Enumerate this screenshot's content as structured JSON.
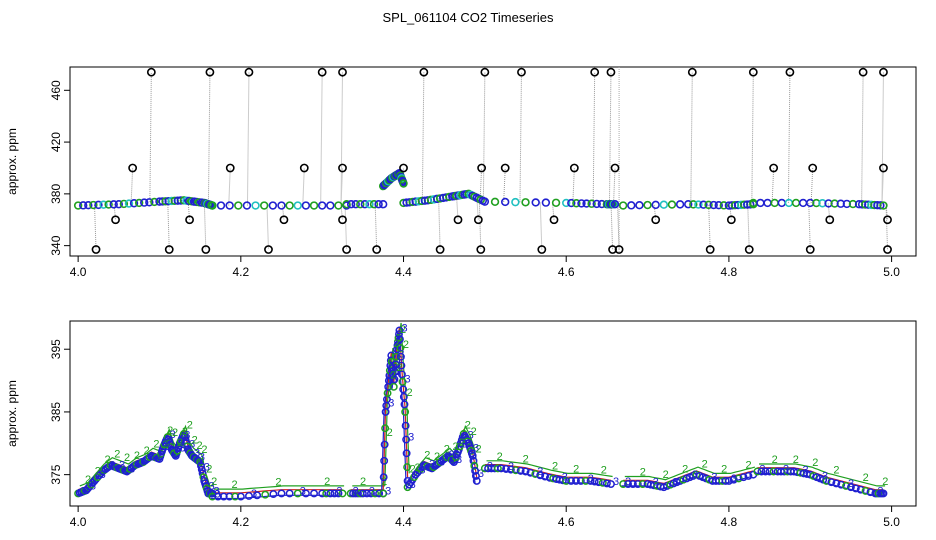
{
  "title": "SPL_061104  CO2 Timeseries",
  "chart_data": [
    {
      "type": "scatter",
      "title": "",
      "xlabel": "",
      "ylabel": "approx. ppm",
      "xlim": [
        3.99,
        5.03
      ],
      "ylim": [
        332,
        478
      ],
      "xticks": [
        4.0,
        4.2,
        4.4,
        4.6,
        4.8,
        5.0
      ],
      "xtick_labels": [
        "4.0",
        "4.2",
        "4.4",
        "4.6",
        "4.8",
        "5.0"
      ],
      "yticks": [
        340,
        380,
        420,
        460
      ],
      "ytick_labels": [
        "340",
        "380",
        "420",
        "460"
      ],
      "baseline_segments": [
        {
          "x": [
            4.0,
            4.05,
            4.1,
            4.13,
            4.155,
            4.165
          ],
          "y": [
            371,
            372,
            374,
            375,
            373,
            371
          ]
        },
        {
          "x": [
            4.165,
            4.25,
            4.33
          ],
          "y": [
            371,
            371,
            371
          ]
        },
        {
          "x": [
            4.33,
            4.375
          ],
          "y": [
            372,
            372
          ]
        },
        {
          "x": [
            4.375,
            4.385,
            4.395,
            4.4
          ],
          "y": [
            386,
            392,
            396,
            388
          ]
        },
        {
          "x": [
            4.4,
            4.43,
            4.46,
            4.48,
            4.5,
            4.6,
            4.65,
            4.66
          ],
          "y": [
            373,
            375,
            378,
            380,
            374,
            373,
            372,
            372
          ]
        },
        {
          "x": [
            4.67,
            4.75,
            4.8,
            4.83
          ],
          "y": [
            371,
            372,
            371,
            372
          ]
        },
        {
          "x": [
            4.83,
            4.9,
            4.96,
            4.99
          ],
          "y": [
            373,
            373,
            372,
            371
          ]
        }
      ],
      "outliers_high": [
        4.09,
        4.162,
        4.21,
        4.3,
        4.325,
        4.425,
        4.5,
        4.545,
        4.635,
        4.655,
        4.755,
        4.83,
        4.875,
        4.965,
        4.99
      ],
      "outliers_high_value": 474,
      "outliers_mid": [
        4.067,
        4.187,
        4.278,
        4.325,
        4.4,
        4.496,
        4.525,
        4.61,
        4.66,
        4.855,
        4.903,
        4.99
      ],
      "outliers_mid_value": 400,
      "outliers_low": [
        4.022,
        4.112,
        4.157,
        4.234,
        4.33,
        4.367,
        4.445,
        4.495,
        4.57,
        4.657,
        4.665,
        4.777,
        4.825,
        4.9,
        4.995
      ],
      "outliers_low_value": 337,
      "outliers_lowmid": [
        4.046,
        4.137,
        4.253,
        4.325,
        4.467,
        4.492,
        4.585,
        4.71,
        4.803,
        4.924,
        4.995
      ],
      "outliers_lowmid_value": 360
    },
    {
      "type": "line",
      "title": "",
      "xlabel": "",
      "ylabel": "approx. ppm",
      "xlim": [
        3.99,
        5.03
      ],
      "ylim": [
        370,
        399.5
      ],
      "xticks": [
        4.0,
        4.2,
        4.4,
        4.6,
        4.8,
        5.0
      ],
      "xtick_labels": [
        "4.0",
        "4.2",
        "4.4",
        "4.6",
        "4.8",
        "5.0"
      ],
      "yticks": [
        375,
        385,
        395
      ],
      "ytick_labels": [
        "375",
        "385",
        "395"
      ],
      "series_labels": [
        "1",
        "2",
        "3"
      ],
      "series_colors": [
        "#d02020",
        "#20a020",
        "#2020d0"
      ],
      "segments": [
        {
          "x": [
            4.0,
            4.01,
            4.02,
            4.03,
            4.04,
            4.05,
            4.06,
            4.07,
            4.08,
            4.09,
            4.1,
            4.105,
            4.11,
            4.115,
            4.12,
            4.125,
            4.13,
            4.135,
            4.14,
            4.145,
            4.15,
            4.155,
            4.16,
            4.165
          ],
          "y": [
            372,
            372.5,
            374,
            375.5,
            376.5,
            376,
            375.5,
            376.5,
            377,
            378,
            377.5,
            379.5,
            381,
            379,
            378,
            380,
            381.5,
            379,
            378,
            377.5,
            377,
            374,
            372,
            372
          ]
        },
        {
          "x": [
            4.165,
            4.2,
            4.25,
            4.3,
            4.325
          ],
          "y": [
            371.5,
            371.5,
            372,
            372,
            372
          ]
        },
        {
          "x": [
            4.335,
            4.35,
            4.375
          ],
          "y": [
            372,
            372,
            372
          ]
        },
        {
          "x": [
            4.375,
            4.378,
            4.382,
            4.385,
            4.388,
            4.392,
            4.395,
            4.398,
            4.402,
            4.405
          ],
          "y": [
            372,
            385,
            390,
            394,
            389,
            395,
            398,
            391,
            385,
            374
          ]
        },
        {
          "x": [
            4.405,
            4.415,
            4.425,
            4.435,
            4.445,
            4.455,
            4.462,
            4.468,
            4.474,
            4.48,
            4.485,
            4.49
          ],
          "y": [
            373,
            375,
            376.5,
            376,
            377,
            378,
            377,
            379,
            381.5,
            380,
            378,
            374
          ]
        },
        {
          "x": [
            4.5,
            4.52,
            4.55,
            4.58,
            4.6,
            4.63,
            4.655
          ],
          "y": [
            376,
            376,
            375.5,
            374.5,
            374,
            374,
            373.5
          ]
        },
        {
          "x": [
            4.67,
            4.7,
            4.72,
            4.74,
            4.76,
            4.78,
            4.8,
            4.83
          ],
          "y": [
            373.5,
            373.5,
            373,
            374,
            375,
            374,
            374,
            375
          ]
        },
        {
          "x": [
            4.835,
            4.86,
            4.88,
            4.9,
            4.92,
            4.95,
            4.98,
            4.99
          ],
          "y": [
            375.5,
            375.5,
            375.5,
            375,
            374,
            373,
            372,
            372
          ]
        }
      ]
    }
  ]
}
